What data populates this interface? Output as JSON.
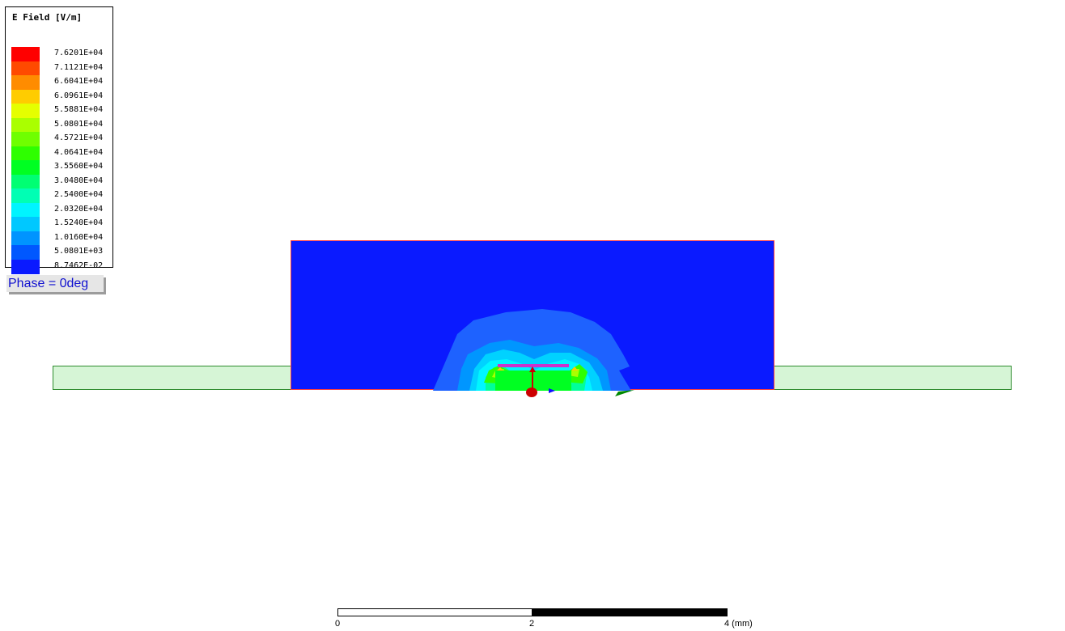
{
  "legend": {
    "title": "E Field [V/m]",
    "entries": [
      {
        "value": "7.6201E+04",
        "color": "#ff0000"
      },
      {
        "value": "7.1121E+04",
        "color": "#ff4a00"
      },
      {
        "value": "6.6041E+04",
        "color": "#ff8c00"
      },
      {
        "value": "6.0961E+04",
        "color": "#ffcc00"
      },
      {
        "value": "5.5881E+04",
        "color": "#e5ff00"
      },
      {
        "value": "5.0801E+04",
        "color": "#aaff00"
      },
      {
        "value": "4.5721E+04",
        "color": "#6fff00"
      },
      {
        "value": "4.0641E+04",
        "color": "#2eff00"
      },
      {
        "value": "3.5560E+04",
        "color": "#00ff22"
      },
      {
        "value": "3.0480E+04",
        "color": "#00ff73"
      },
      {
        "value": "2.5400E+04",
        "color": "#00ffb4"
      },
      {
        "value": "2.0320E+04",
        "color": "#00f4ff"
      },
      {
        "value": "1.5240E+04",
        "color": "#00c8ff"
      },
      {
        "value": "1.0160E+04",
        "color": "#0094ff"
      },
      {
        "value": "5.0801E+03",
        "color": "#0058ff"
      },
      {
        "value": "8.7462E-02",
        "color": "#0a1aff"
      }
    ]
  },
  "phase_label": "Phase = 0deg",
  "scale": {
    "label_0": "0",
    "label_2": "2",
    "label_4": "4 (mm)"
  }
}
